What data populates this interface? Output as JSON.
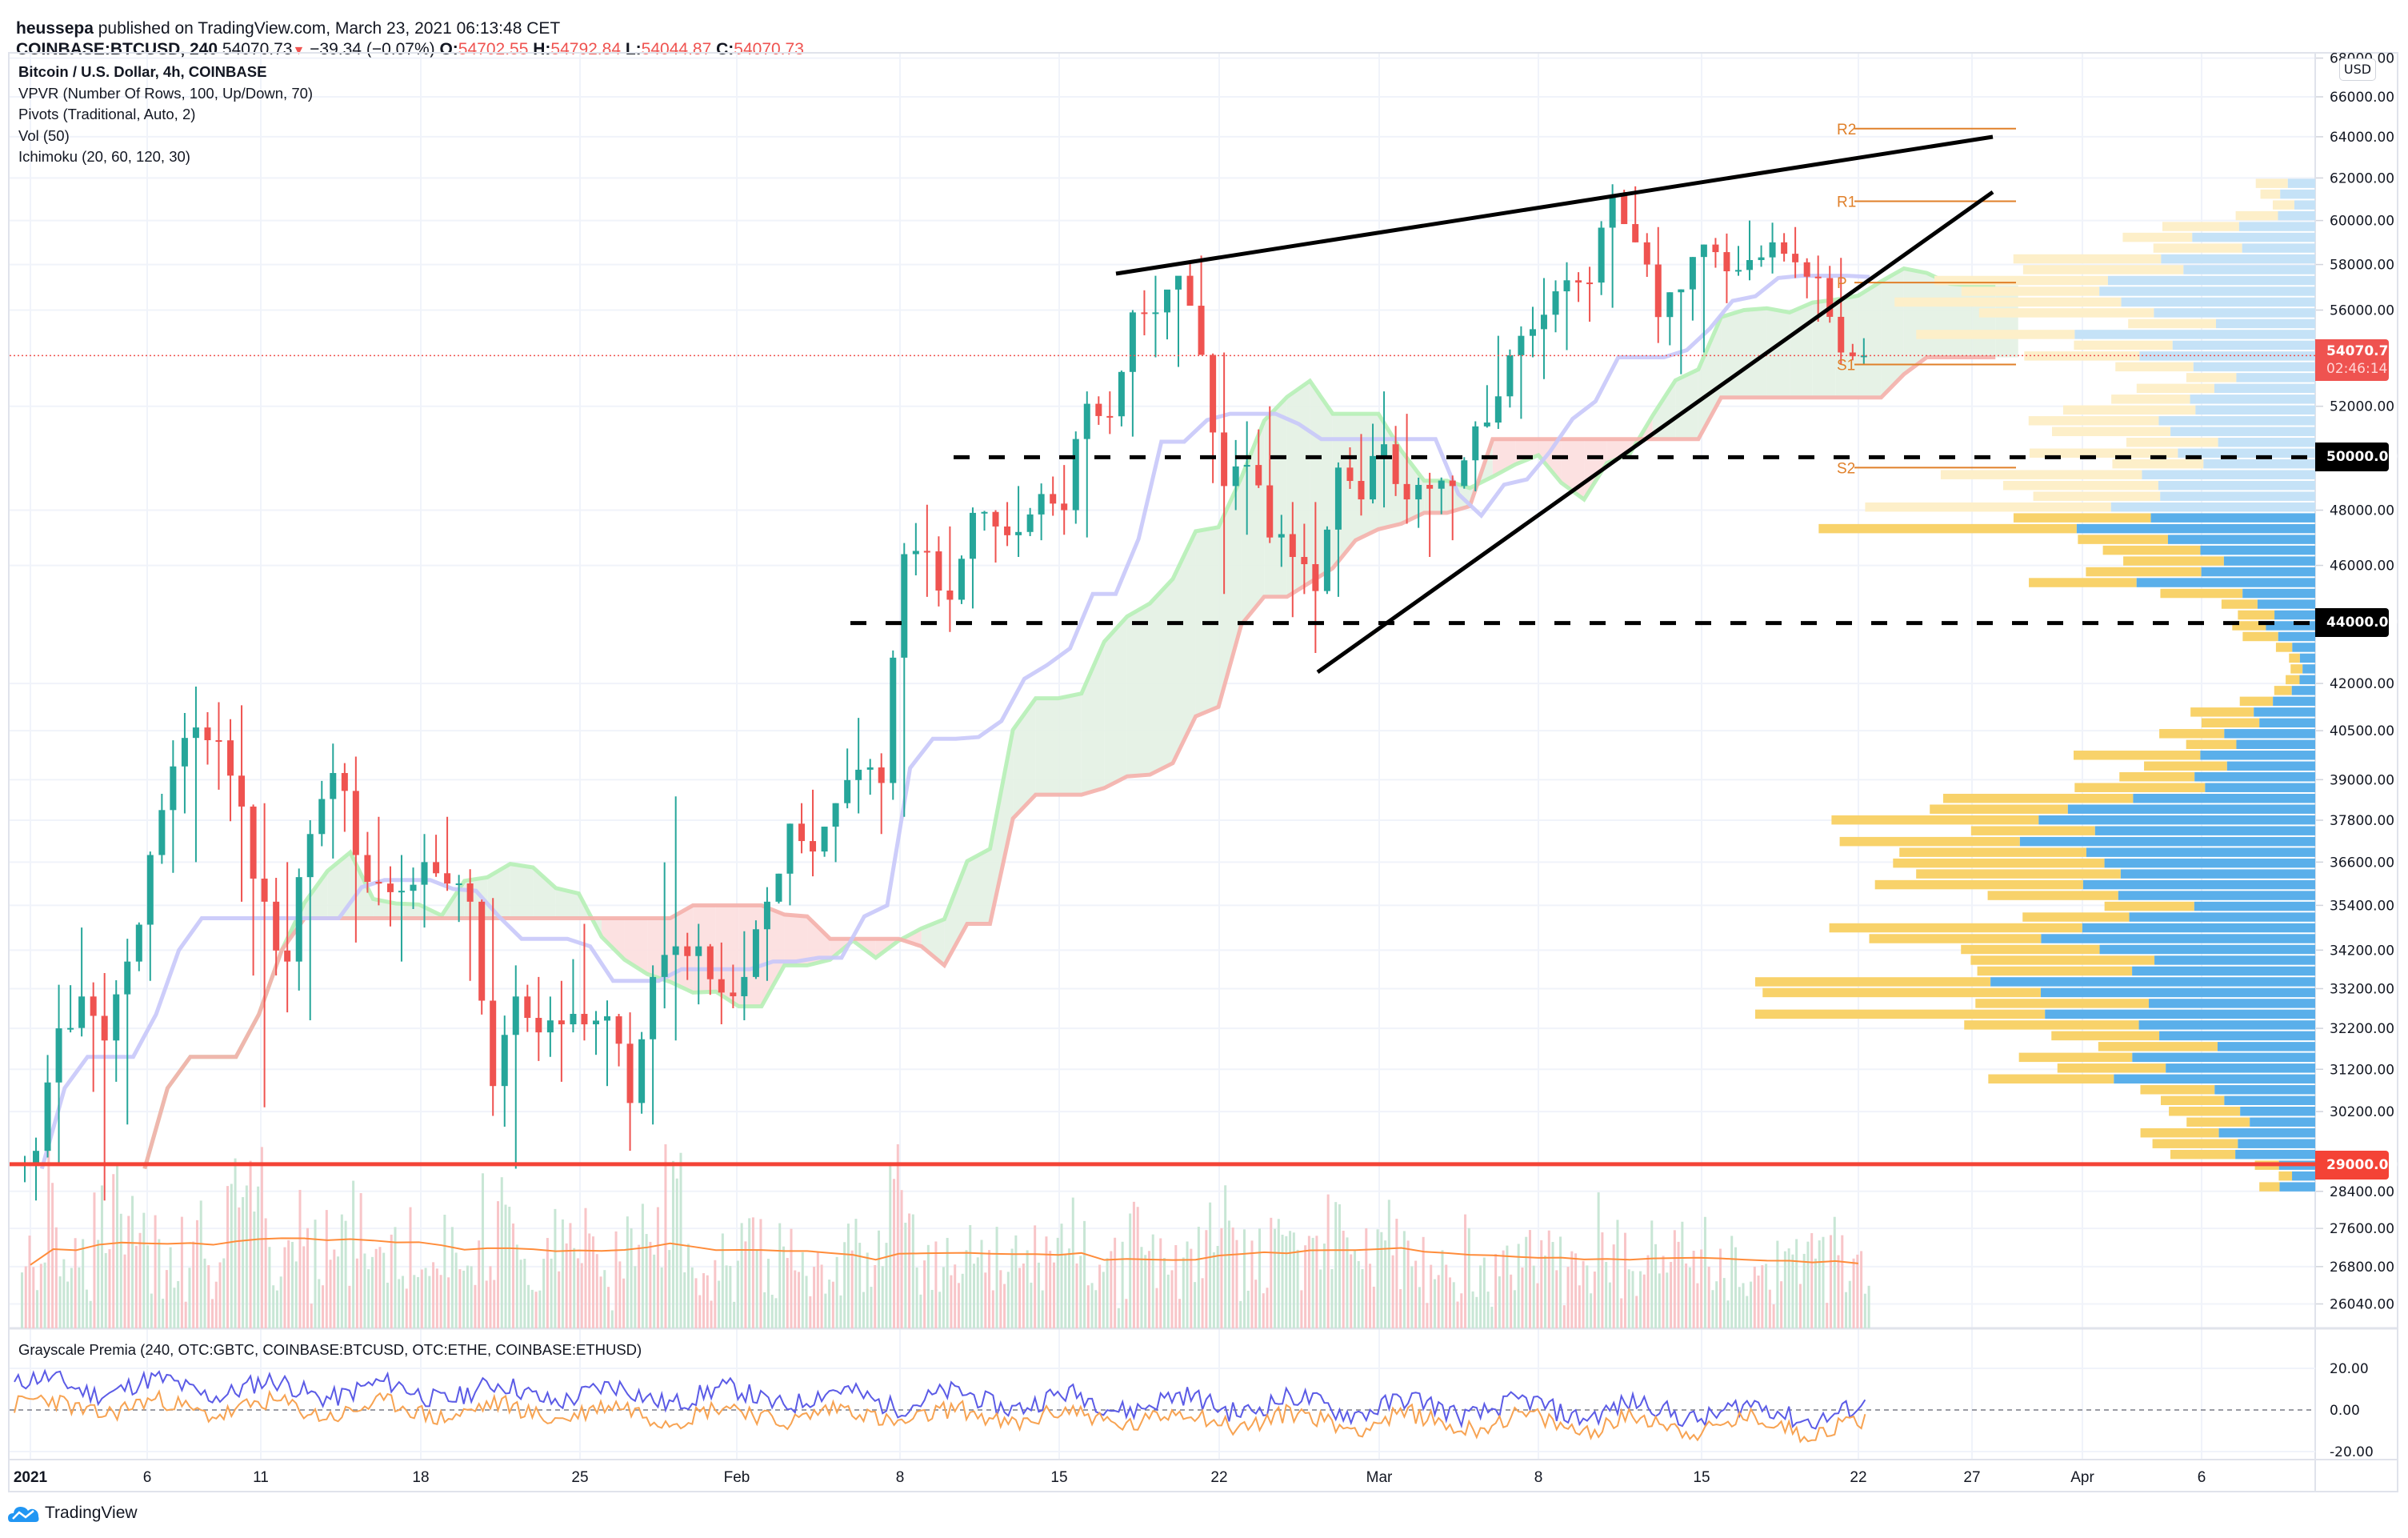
{
  "header": {
    "publisher": "heussepa",
    "published_text": "published on TradingView.com, March 23, 2021 06:13:48 CET",
    "symbol": "COINBASE:BTCUSD, 240",
    "last": "54070.73",
    "change": "−39.34 (−0.07%)",
    "o_label": "O:",
    "o": "54702.55",
    "h_label": "H:",
    "h": "54792.84",
    "l_label": "L:",
    "l": "54044.87",
    "c_label": "C:",
    "c": "54070.73"
  },
  "legend": {
    "title": "Bitcoin / U.S. Dollar, 4h, COINBASE",
    "items": [
      "VPVR (Number Of Rows, 100, Up/Down, 70)",
      "Pivots (Traditional, Auto, 2)",
      "Vol (50)",
      "Ichimoku (20, 60, 120, 30)"
    ]
  },
  "price_axis": {
    "currency": "USD",
    "ticks": [
      "68000.00",
      "66000.00",
      "64000.00",
      "62000.00",
      "60000.00",
      "58000.00",
      "56000.00",
      "52000.00",
      "48000.00",
      "46000.00",
      "42000.00",
      "40500.00",
      "39000.00",
      "37800.00",
      "36600.00",
      "35400.00",
      "34200.00",
      "33200.00",
      "32200.00",
      "31200.00",
      "30200.00",
      "28400.00",
      "27600.00",
      "26800.00",
      "26040.00"
    ],
    "current_price_label": "54070.73",
    "countdown": "02:46:14",
    "level_labels": [
      {
        "value": "50000.00",
        "color": "#000000"
      },
      {
        "value": "44000.00",
        "color": "#000000"
      },
      {
        "value": "29000.00",
        "color": "#f44336"
      }
    ]
  },
  "time_axis": {
    "labels": [
      "2021",
      "6",
      "11",
      "18",
      "25",
      "Feb",
      "8",
      "15",
      "22",
      "Mar",
      "8",
      "15",
      "22",
      "27",
      "Apr",
      "6"
    ]
  },
  "pivots": {
    "labels": [
      "R2",
      "R1",
      "P",
      "S1",
      "S2"
    ]
  },
  "lower_pane": {
    "title": "Grayscale Premia (240, OTC:GBTC, COINBASE:BTCUSD, OTC:ETHE, COINBASE:ETHUSD)",
    "ticks": [
      "20.00",
      "0.00",
      "-20.00"
    ]
  },
  "footer": {
    "brand": "TradingView"
  },
  "colors": {
    "up": "#26a69a",
    "down": "#ef5350",
    "vol_up": "#c8e6d5",
    "vol_down": "#f8c5c8",
    "vol_ma": "#ff8c3a",
    "kijun": "#c8c8fa",
    "span_a": "#b6f0b6",
    "span_b": "#f4b0ab",
    "cloud_up": "#e3f1e3",
    "cloud_down": "#fcdede",
    "vp_up": "#5aafea",
    "vp_down": "#f8d26a",
    "vp_up_light": "#c5e2f7",
    "vp_down_light": "#fdefc9",
    "pivot": "#e0802a",
    "premia_btc": "#5b5be6",
    "premia_eth": "#f7a352"
  },
  "chart_data": {
    "type": "candlestick",
    "title": "Bitcoin / U.S. Dollar, 4h, COINBASE",
    "xlabel": "",
    "ylabel": "USD",
    "y_scale": "log",
    "ylim": [
      25500,
      68500
    ],
    "x_start": "2021-01-01",
    "daily_ohlc": [
      [
        29000,
        29600,
        28200,
        29300
      ],
      [
        29300,
        33300,
        29000,
        32200
      ],
      [
        32200,
        34800,
        32000,
        33000
      ],
      [
        33000,
        33600,
        28200,
        31900
      ],
      [
        31900,
        34500,
        29900,
        33900
      ],
      [
        33900,
        36900,
        33400,
        36800
      ],
      [
        36800,
        40200,
        36300,
        39400
      ],
      [
        39400,
        41900,
        36600,
        40600
      ],
      [
        40600,
        41400,
        38700,
        40200
      ],
      [
        40200,
        41300,
        35500,
        38200
      ],
      [
        38200,
        38300,
        30300,
        35500
      ],
      [
        35500,
        36600,
        32600,
        33900
      ],
      [
        33900,
        37800,
        32400,
        37400
      ],
      [
        37400,
        40100,
        36700,
        39200
      ],
      [
        39200,
        39700,
        34400,
        36800
      ],
      [
        36800,
        37900,
        35400,
        36000
      ],
      [
        36000,
        36800,
        33900,
        35800
      ],
      [
        35800,
        37400,
        34800,
        36600
      ],
      [
        36600,
        37900,
        35800,
        36000
      ],
      [
        36000,
        36400,
        33400,
        35500
      ],
      [
        35500,
        35600,
        30100,
        30800
      ],
      [
        30800,
        33800,
        28900,
        33000
      ],
      [
        33000,
        33500,
        31400,
        32100
      ],
      [
        32100,
        33400,
        30900,
        32300
      ],
      [
        32300,
        34900,
        31900,
        32300
      ],
      [
        32300,
        32900,
        30800,
        32500
      ],
      [
        32500,
        32600,
        29300,
        30400
      ],
      [
        30400,
        33800,
        29900,
        33500
      ],
      [
        33500,
        38500,
        31900,
        34300
      ],
      [
        34300,
        34900,
        32800,
        34300
      ],
      [
        34300,
        34400,
        32300,
        33100
      ],
      [
        33100,
        34700,
        32400,
        33500
      ],
      [
        33500,
        35900,
        33400,
        35500
      ],
      [
        35500,
        37700,
        35400,
        37700
      ],
      [
        37700,
        38700,
        36200,
        36900
      ],
      [
        36900,
        38300,
        36600,
        38300
      ],
      [
        38300,
        40900,
        38000,
        39300
      ],
      [
        39300,
        39800,
        37400,
        38900
      ],
      [
        38900,
        46800,
        37900,
        46400
      ],
      [
        46400,
        48200,
        44900,
        46500
      ],
      [
        46500,
        47400,
        43700,
        44800
      ],
      [
        44800,
        48100,
        44500,
        47900
      ],
      [
        47900,
        48000,
        46100,
        47400
      ],
      [
        47400,
        48900,
        46300,
        47200
      ],
      [
        47200,
        49000,
        46900,
        48600
      ],
      [
        48600,
        49700,
        47100,
        48000
      ],
      [
        48000,
        52600,
        47000,
        52100
      ],
      [
        52100,
        52600,
        50900,
        51600
      ],
      [
        51600,
        56000,
        50800,
        55900
      ],
      [
        55900,
        57500,
        54000,
        55900
      ],
      [
        55900,
        57200,
        53600,
        57500
      ],
      [
        57500,
        58400,
        55500,
        54100
      ],
      [
        54100,
        54200,
        45000,
        48900
      ],
      [
        48900,
        51400,
        47100,
        49700
      ],
      [
        49700,
        52000,
        46800,
        47000
      ],
      [
        47000,
        48300,
        44200,
        46300
      ],
      [
        46300,
        48300,
        43000,
        45100
      ],
      [
        45100,
        49800,
        44900,
        49600
      ],
      [
        49600,
        50900,
        47800,
        48400
      ],
      [
        48400,
        52600,
        48100,
        50500
      ],
      [
        50500,
        51700,
        47500,
        48400
      ],
      [
        48400,
        49400,
        46300,
        48800
      ],
      [
        48800,
        49300,
        46900,
        48900
      ],
      [
        48900,
        51400,
        48700,
        51200
      ],
      [
        51200,
        54900,
        51100,
        52400
      ],
      [
        52400,
        55300,
        51500,
        54900
      ],
      [
        54900,
        57400,
        53100,
        55800
      ],
      [
        55800,
        58100,
        54300,
        57300
      ],
      [
        57300,
        57900,
        55500,
        57200
      ],
      [
        57200,
        61700,
        56100,
        61200
      ],
      [
        61200,
        61600,
        59000,
        59000
      ],
      [
        59000,
        59700,
        54600,
        55700
      ],
      [
        55700,
        56900,
        53300,
        56900
      ],
      [
        56900,
        58900,
        54200,
        58900
      ],
      [
        58900,
        59400,
        56300,
        57700
      ],
      [
        57700,
        60000,
        57300,
        58200
      ],
      [
        58200,
        59900,
        57600,
        59000
      ],
      [
        59000,
        59700,
        57400,
        58100
      ],
      [
        58100,
        58400,
        55500,
        57400
      ],
      [
        57400,
        58300,
        53700,
        54200
      ],
      [
        54200,
        54800,
        53700,
        54070
      ]
    ],
    "horizontal_levels": [
      {
        "price": 50000,
        "style": "dashed",
        "color": "#000000"
      },
      {
        "price": 44000,
        "style": "dashed",
        "color": "#000000"
      },
      {
        "price": 29000,
        "style": "solid",
        "color": "#f44336"
      }
    ],
    "trendlines": [
      {
        "from": {
          "date": "2021-02-19",
          "price": 57400
        },
        "to": {
          "date": "2021-03-27",
          "price": 64200
        }
      },
      {
        "from": {
          "date": "2021-02-25",
          "price": 42600
        },
        "to": {
          "date": "2021-03-27",
          "price": 61400
        }
      }
    ],
    "pivots": {
      "R2": 64400,
      "R1": 60900,
      "P": 57200,
      "S1": 53700,
      "S2": 49600
    },
    "premia_series": [
      {
        "name": "GBTC premium",
        "color": "#5b5be6",
        "approx_range": [
          -12,
          30
        ],
        "end": -2
      },
      {
        "name": "ETHE premium",
        "color": "#f7a352",
        "approx_range": [
          -20,
          22
        ],
        "end": -8
      }
    ]
  }
}
